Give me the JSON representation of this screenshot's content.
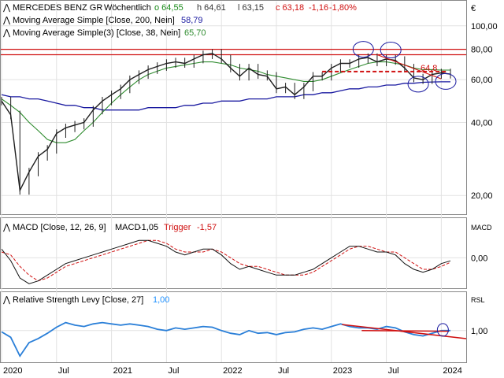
{
  "header": {
    "symbol": "MERCEDES BENZ GR",
    "interval": "Wöchentlich",
    "open": "o 64,55",
    "high": "h 64,61",
    "low": "l 63,15",
    "close": "c 63,18",
    "change": "-1,16",
    "change_pct": "-1,80%"
  },
  "indicators": {
    "sma200": {
      "label": "Moving Average Simple [Close, 200, Nein]",
      "value": "58,79",
      "color": "#1a1aa0"
    },
    "sma38": {
      "label": "Moving Average Simple(3) [Close, 38, Nein]",
      "value": "65,70",
      "color": "#2e8b2e"
    },
    "macd": {
      "label": "MACD [Close, 12, 26, 9]",
      "macd_label": "MACD",
      "macd_value": "-1,05",
      "trigger_label": "Trigger",
      "trigger_value": "-1,57"
    },
    "rsl": {
      "label": "Relative Strength Levy [Close, 27]",
      "value": "1,00",
      "color": "#1e90ff"
    }
  },
  "annotation_value": "64,8",
  "colors": {
    "price_line": "#1e1e1e",
    "resistance": "#d01010",
    "rsl": "#2a7fd8",
    "sma200": "#1a1aa0",
    "sma38": "#2e8b2e",
    "trigger": "#d01010"
  },
  "axes": {
    "currency": "€",
    "price_ticks": [
      "100,00",
      "80,00",
      "60,00",
      "40,00",
      "20,00"
    ],
    "macd_axis_label": "MACD",
    "macd_ticks": [
      "0,00"
    ],
    "rsl_axis_label": "RSL",
    "rsl_ticks": [
      "1,00"
    ],
    "x_ticks": [
      "2020",
      "Jul",
      "2021",
      "Jul",
      "2022",
      "Jul",
      "2023",
      "Jul",
      "2024"
    ]
  },
  "chart_data": {
    "type": "line",
    "scale": "log",
    "x": [
      "2020-01",
      "2020-02",
      "2020-03",
      "2020-04",
      "2020-05",
      "2020-06",
      "2020-07",
      "2020-08",
      "2020-09",
      "2020-10",
      "2020-11",
      "2020-12",
      "2021-01",
      "2021-02",
      "2021-03",
      "2021-04",
      "2021-05",
      "2021-06",
      "2021-07",
      "2021-08",
      "2021-09",
      "2021-10",
      "2021-11",
      "2021-12",
      "2022-01",
      "2022-02",
      "2022-03",
      "2022-04",
      "2022-05",
      "2022-06",
      "2022-07",
      "2022-08",
      "2022-09",
      "2022-10",
      "2022-11",
      "2022-12",
      "2023-01",
      "2023-02",
      "2023-03",
      "2023-04",
      "2023-05",
      "2023-06",
      "2023-07",
      "2023-08",
      "2023-09",
      "2023-10",
      "2023-11",
      "2023-12",
      "2024-01",
      "2024-02"
    ],
    "series": [
      {
        "name": "MERCEDES BENZ GR",
        "values": [
          49,
          43,
          21,
          25,
          29,
          31,
          36,
          38,
          39,
          40,
          45,
          49,
          52,
          55,
          60,
          63,
          66,
          68,
          70,
          71,
          70,
          73,
          76,
          77,
          73,
          67,
          62,
          67,
          63,
          62,
          55,
          56,
          52,
          56,
          62,
          62,
          67,
          70,
          70,
          73,
          74,
          71,
          73,
          72,
          67,
          61,
          60,
          63,
          64,
          63.18
        ]
      },
      {
        "name": "Moving Average Simple(3)",
        "values": [
          50,
          47,
          44,
          40,
          37,
          34,
          33,
          33,
          34,
          37,
          40,
          44,
          48,
          52,
          56,
          60,
          63,
          65,
          67,
          68,
          69,
          70,
          71,
          71,
          70,
          69,
          67,
          66,
          65,
          63,
          62,
          61,
          60,
          59,
          59,
          60,
          62,
          64,
          66,
          68,
          70,
          71,
          71,
          70,
          69,
          67,
          66,
          66,
          65.7,
          65.7
        ]
      },
      {
        "name": "Moving Average Simple",
        "values": [
          52,
          51,
          51,
          50,
          50,
          49,
          48,
          47,
          47,
          46,
          46,
          45,
          45,
          45,
          45,
          45,
          46,
          46,
          46,
          46,
          47,
          47,
          48,
          48,
          49,
          49,
          49,
          50,
          50,
          50,
          51,
          51,
          51,
          52,
          52,
          53,
          53,
          54,
          55,
          55,
          56,
          56,
          57,
          57,
          58,
          58,
          58.5,
          58.7,
          58.79,
          58.79
        ]
      }
    ],
    "resistance_levels": [
      80,
      76
    ],
    "support_level": 64.8,
    "price_ylim": [
      17,
      110
    ],
    "macd": {
      "macd_values": [
        3,
        -1,
        -7,
        -9,
        -8,
        -6,
        -4,
        -2,
        -1,
        0,
        1,
        2,
        3,
        4,
        5,
        6,
        6,
        5,
        4,
        2,
        1,
        2,
        3,
        3,
        1,
        -2,
        -4,
        -3,
        -4,
        -5,
        -6,
        -6,
        -6,
        -5,
        -4,
        -2,
        0,
        2,
        4,
        4,
        3,
        2,
        2,
        1,
        -2,
        -4,
        -5,
        -4,
        -2,
        -1.05
      ],
      "trigger_values": [
        2,
        1,
        -3,
        -6,
        -8,
        -7,
        -5,
        -3,
        -2,
        -1,
        0,
        1,
        2,
        3,
        4,
        5,
        6,
        6,
        5,
        3,
        2,
        2,
        2,
        3,
        2,
        0,
        -2,
        -3,
        -3,
        -4,
        -5,
        -6,
        -6,
        -6,
        -5,
        -3,
        -1,
        1,
        3,
        4,
        4,
        3,
        2,
        2,
        0,
        -2,
        -4,
        -4,
        -3,
        -1.57
      ],
      "ylim": [
        -10,
        8
      ]
    },
    "rsl": {
      "values": [
        0.98,
        0.9,
        0.62,
        0.82,
        0.88,
        0.96,
        1.05,
        1.12,
        1.08,
        1.06,
        1.1,
        1.12,
        1.1,
        1.08,
        1.1,
        1.08,
        1.06,
        1.02,
        1.0,
        1.04,
        1.02,
        1.04,
        1.06,
        1.05,
        1.0,
        0.96,
        0.94,
        1.0,
        0.96,
        0.97,
        0.94,
        0.97,
        0.98,
        1.02,
        1.04,
        1.02,
        1.06,
        1.1,
        1.06,
        1.04,
        1.04,
        1.02,
        1.06,
        1.04,
        0.98,
        0.94,
        0.92,
        0.96,
        1.0,
        1.0
      ],
      "ylim": [
        0.55,
        1.35
      ]
    }
  }
}
